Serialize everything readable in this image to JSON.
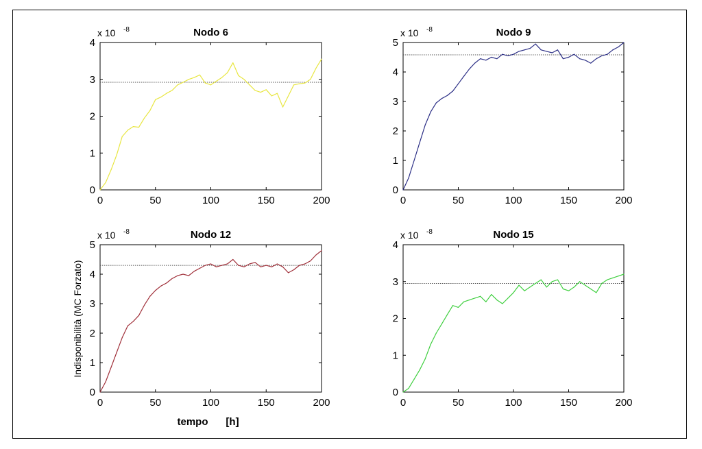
{
  "figure": {
    "ylabel": "Indisponibilità (MC Forzato)",
    "xlabel_word": "tempo",
    "xlabel_unit": "[h]"
  },
  "chart_data": [
    {
      "type": "line",
      "title": "Nodo 6",
      "scale_label": "x 10",
      "scale_exponent": "-8",
      "xlim": [
        0,
        200
      ],
      "ylim": [
        0,
        4
      ],
      "xticks": [
        0,
        50,
        100,
        150,
        200
      ],
      "yticks": [
        0,
        1,
        2,
        3,
        4
      ],
      "color": "#e8e640",
      "reference_line": 2.92,
      "series": [
        {
          "x": [
            0,
            5,
            10,
            15,
            20,
            25,
            30,
            35,
            40,
            45,
            50,
            55,
            60,
            65,
            70,
            75,
            80,
            85,
            90,
            95,
            100,
            105,
            110,
            115,
            120,
            125,
            130,
            135,
            140,
            145,
            150,
            155,
            160,
            165,
            170,
            175,
            180,
            185,
            190,
            195,
            200
          ],
          "y": [
            0,
            0.2,
            0.55,
            0.95,
            1.45,
            1.62,
            1.72,
            1.7,
            1.95,
            2.15,
            2.45,
            2.52,
            2.62,
            2.7,
            2.85,
            2.92,
            3.0,
            3.05,
            3.12,
            2.9,
            2.85,
            2.95,
            3.05,
            3.18,
            3.45,
            3.1,
            3.0,
            2.85,
            2.7,
            2.65,
            2.72,
            2.55,
            2.62,
            2.25,
            2.55,
            2.85,
            2.88,
            2.9,
            3.0,
            3.3,
            3.55
          ]
        }
      ]
    },
    {
      "type": "line",
      "title": "Nodo 9",
      "scale_label": "x 10",
      "scale_exponent": "-8",
      "xlim": [
        0,
        200
      ],
      "ylim": [
        0,
        5
      ],
      "xticks": [
        0,
        50,
        100,
        150,
        200
      ],
      "yticks": [
        0,
        1,
        2,
        3,
        4,
        5
      ],
      "color": "#2c2f86",
      "reference_line": 4.58,
      "series": [
        {
          "x": [
            0,
            5,
            10,
            15,
            20,
            25,
            30,
            35,
            40,
            45,
            50,
            55,
            60,
            65,
            70,
            75,
            80,
            85,
            90,
            95,
            100,
            105,
            110,
            115,
            120,
            125,
            130,
            135,
            140,
            145,
            150,
            155,
            160,
            165,
            170,
            175,
            180,
            185,
            190,
            195,
            200
          ],
          "y": [
            0,
            0.4,
            1.0,
            1.6,
            2.2,
            2.65,
            2.95,
            3.1,
            3.2,
            3.35,
            3.6,
            3.85,
            4.1,
            4.3,
            4.45,
            4.4,
            4.5,
            4.45,
            4.6,
            4.55,
            4.6,
            4.7,
            4.75,
            4.8,
            4.95,
            4.75,
            4.7,
            4.65,
            4.75,
            4.45,
            4.5,
            4.6,
            4.45,
            4.4,
            4.3,
            4.45,
            4.55,
            4.6,
            4.75,
            4.85,
            5.0
          ]
        }
      ]
    },
    {
      "type": "line",
      "title": "Nodo 12",
      "scale_label": "x 10",
      "scale_exponent": "-8",
      "xlim": [
        0,
        200
      ],
      "ylim": [
        0,
        5
      ],
      "xticks": [
        0,
        50,
        100,
        150,
        200
      ],
      "yticks": [
        0,
        1,
        2,
        3,
        4,
        5
      ],
      "color": "#a0303a",
      "reference_line": 4.3,
      "series": [
        {
          "x": [
            0,
            5,
            10,
            15,
            20,
            25,
            30,
            35,
            40,
            45,
            50,
            55,
            60,
            65,
            70,
            75,
            80,
            85,
            90,
            95,
            100,
            105,
            110,
            115,
            120,
            125,
            130,
            135,
            140,
            145,
            150,
            155,
            160,
            165,
            170,
            175,
            180,
            185,
            190,
            195,
            200
          ],
          "y": [
            0,
            0.35,
            0.85,
            1.35,
            1.85,
            2.25,
            2.4,
            2.6,
            2.95,
            3.25,
            3.45,
            3.6,
            3.7,
            3.85,
            3.95,
            4.0,
            3.95,
            4.1,
            4.2,
            4.3,
            4.35,
            4.25,
            4.3,
            4.35,
            4.5,
            4.3,
            4.25,
            4.35,
            4.4,
            4.25,
            4.3,
            4.25,
            4.35,
            4.25,
            4.05,
            4.15,
            4.3,
            4.35,
            4.45,
            4.65,
            4.8
          ]
        }
      ]
    },
    {
      "type": "line",
      "title": "Nodo 15",
      "scale_label": "x 10",
      "scale_exponent": "-8",
      "xlim": [
        0,
        200
      ],
      "ylim": [
        0,
        4
      ],
      "xticks": [
        0,
        50,
        100,
        150,
        200
      ],
      "yticks": [
        0,
        1,
        2,
        3,
        4
      ],
      "color": "#3fcf3f",
      "reference_line": 2.95,
      "series": [
        {
          "x": [
            0,
            5,
            10,
            15,
            20,
            25,
            30,
            35,
            40,
            45,
            50,
            55,
            60,
            65,
            70,
            75,
            80,
            85,
            90,
            95,
            100,
            105,
            110,
            115,
            120,
            125,
            130,
            135,
            140,
            145,
            150,
            155,
            160,
            165,
            170,
            175,
            180,
            185,
            190,
            195,
            200
          ],
          "y": [
            0,
            0.1,
            0.35,
            0.6,
            0.9,
            1.3,
            1.6,
            1.85,
            2.1,
            2.35,
            2.3,
            2.45,
            2.5,
            2.55,
            2.6,
            2.45,
            2.65,
            2.5,
            2.4,
            2.55,
            2.7,
            2.9,
            2.75,
            2.85,
            2.95,
            3.05,
            2.85,
            3.0,
            3.05,
            2.8,
            2.75,
            2.85,
            3.0,
            2.9,
            2.8,
            2.7,
            2.95,
            3.05,
            3.1,
            3.15,
            3.2
          ]
        }
      ]
    }
  ]
}
